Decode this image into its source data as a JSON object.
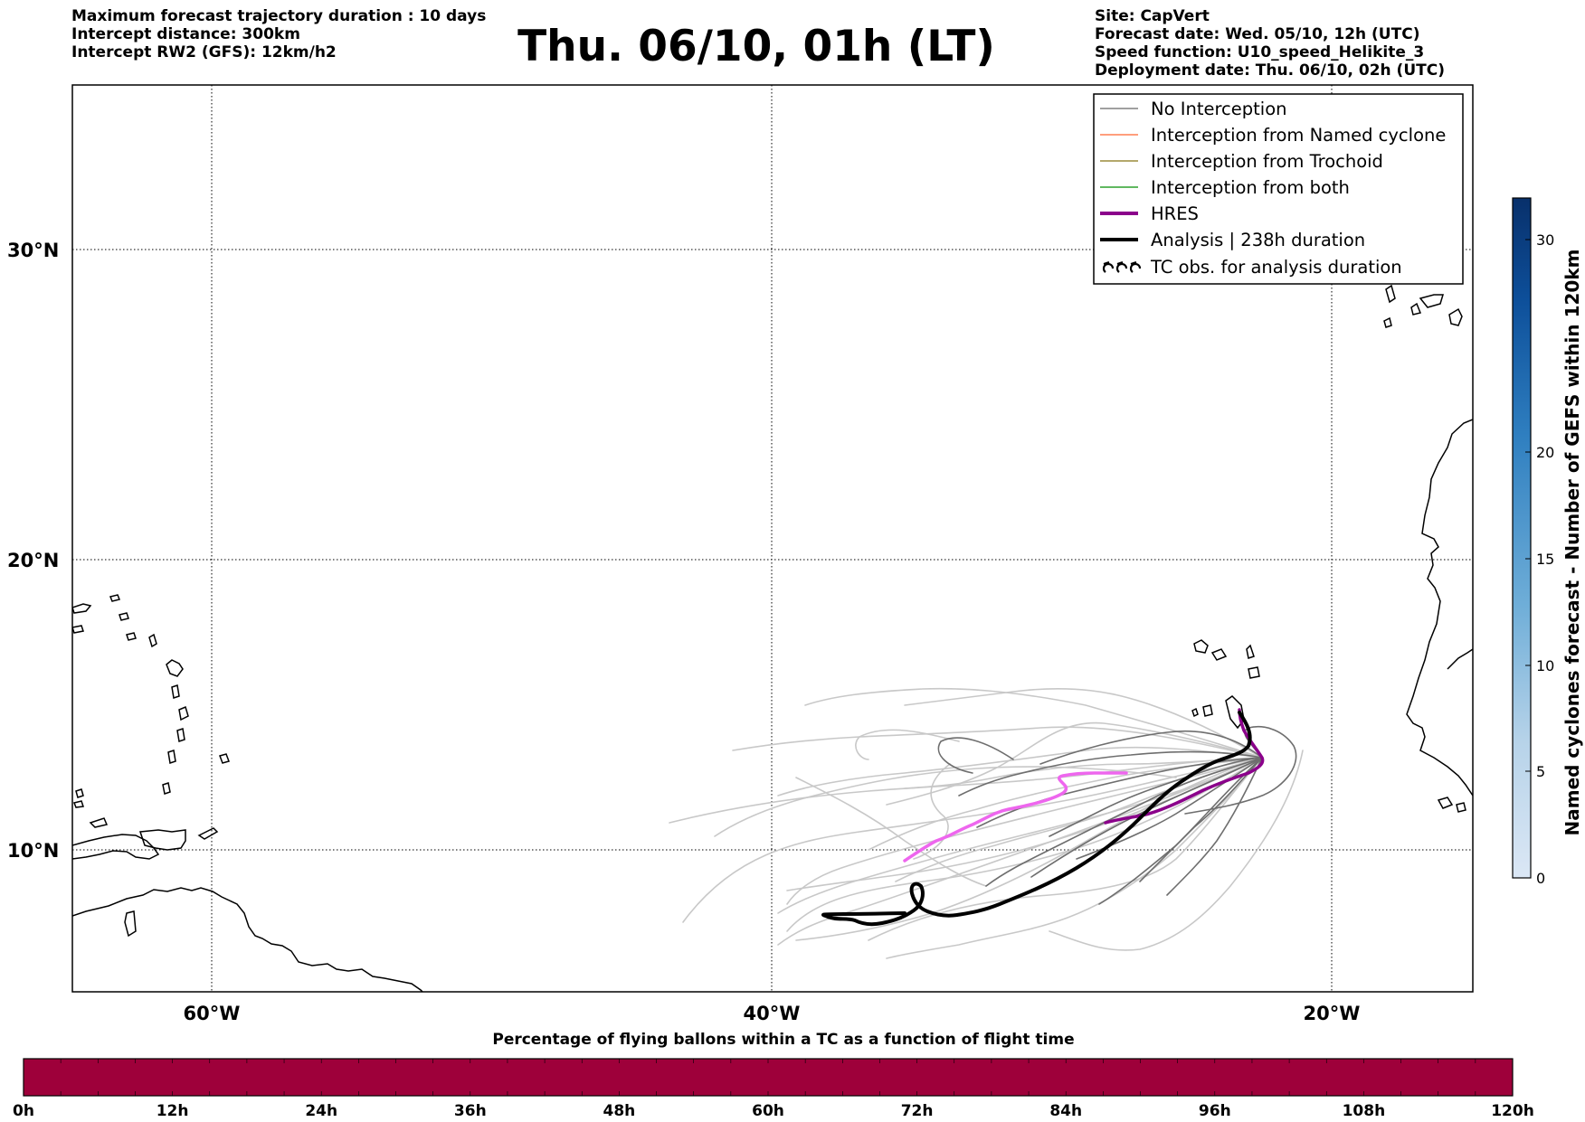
{
  "header_left": {
    "line1": "Maximum forecast trajectory duration : 10 days",
    "line2": "Intercept distance: 300km",
    "line3": "Intercept RW2 (GFS):  12km/h2"
  },
  "title": "Thu. 06/10, 01h (LT)",
  "header_right": {
    "site": "Site: CapVert",
    "forecast_date": "Forecast date: Wed. 05/10, 12h (UTC)",
    "speed_function": "Speed function: U10_speed_Helikite_3",
    "deployment_date": "Deployment date: Thu. 06/10, 02h (UTC)"
  },
  "map": {
    "lat_ticks": [
      "30°N",
      "20°N",
      "10°N"
    ],
    "lon_ticks": [
      "60°W",
      "40°W",
      "20°W"
    ],
    "colors": {
      "no_interception": "#808080",
      "named_cyclone": "#ff7f50",
      "trochoid": "#9b8c3c",
      "both": "#2ca02c",
      "hres": "#8b008b",
      "hres_light": "#ee66ee",
      "analysis": "#000000"
    }
  },
  "legend": {
    "items": [
      {
        "label": "No Interception",
        "color": "#808080"
      },
      {
        "label": "Interception from Named cyclone",
        "color": "#ff7f50"
      },
      {
        "label": "Interception from Trochoid",
        "color": "#9b8c3c"
      },
      {
        "label": "Interception from both",
        "color": "#2ca02c"
      },
      {
        "label": "HRES",
        "color": "#8b008b"
      },
      {
        "label": "Analysis | 238h duration",
        "color": "#000000"
      },
      {
        "label": "TC obs. for analysis duration",
        "icon": "cyclone-symbol-icon"
      }
    ]
  },
  "right_colorbar": {
    "label": "Named cyclones forecast - Number of GEFS within 120km",
    "ticks": [
      "0",
      "5",
      "10",
      "15",
      "20",
      "30"
    ]
  },
  "bottom_colorbar": {
    "title": "Percentage of flying ballons within a TC as a function of flight time",
    "color": "#9e003a",
    "ticks": [
      "0h",
      "12h",
      "24h",
      "36h",
      "48h",
      "60h",
      "72h",
      "84h",
      "96h",
      "108h",
      "120h"
    ]
  }
}
